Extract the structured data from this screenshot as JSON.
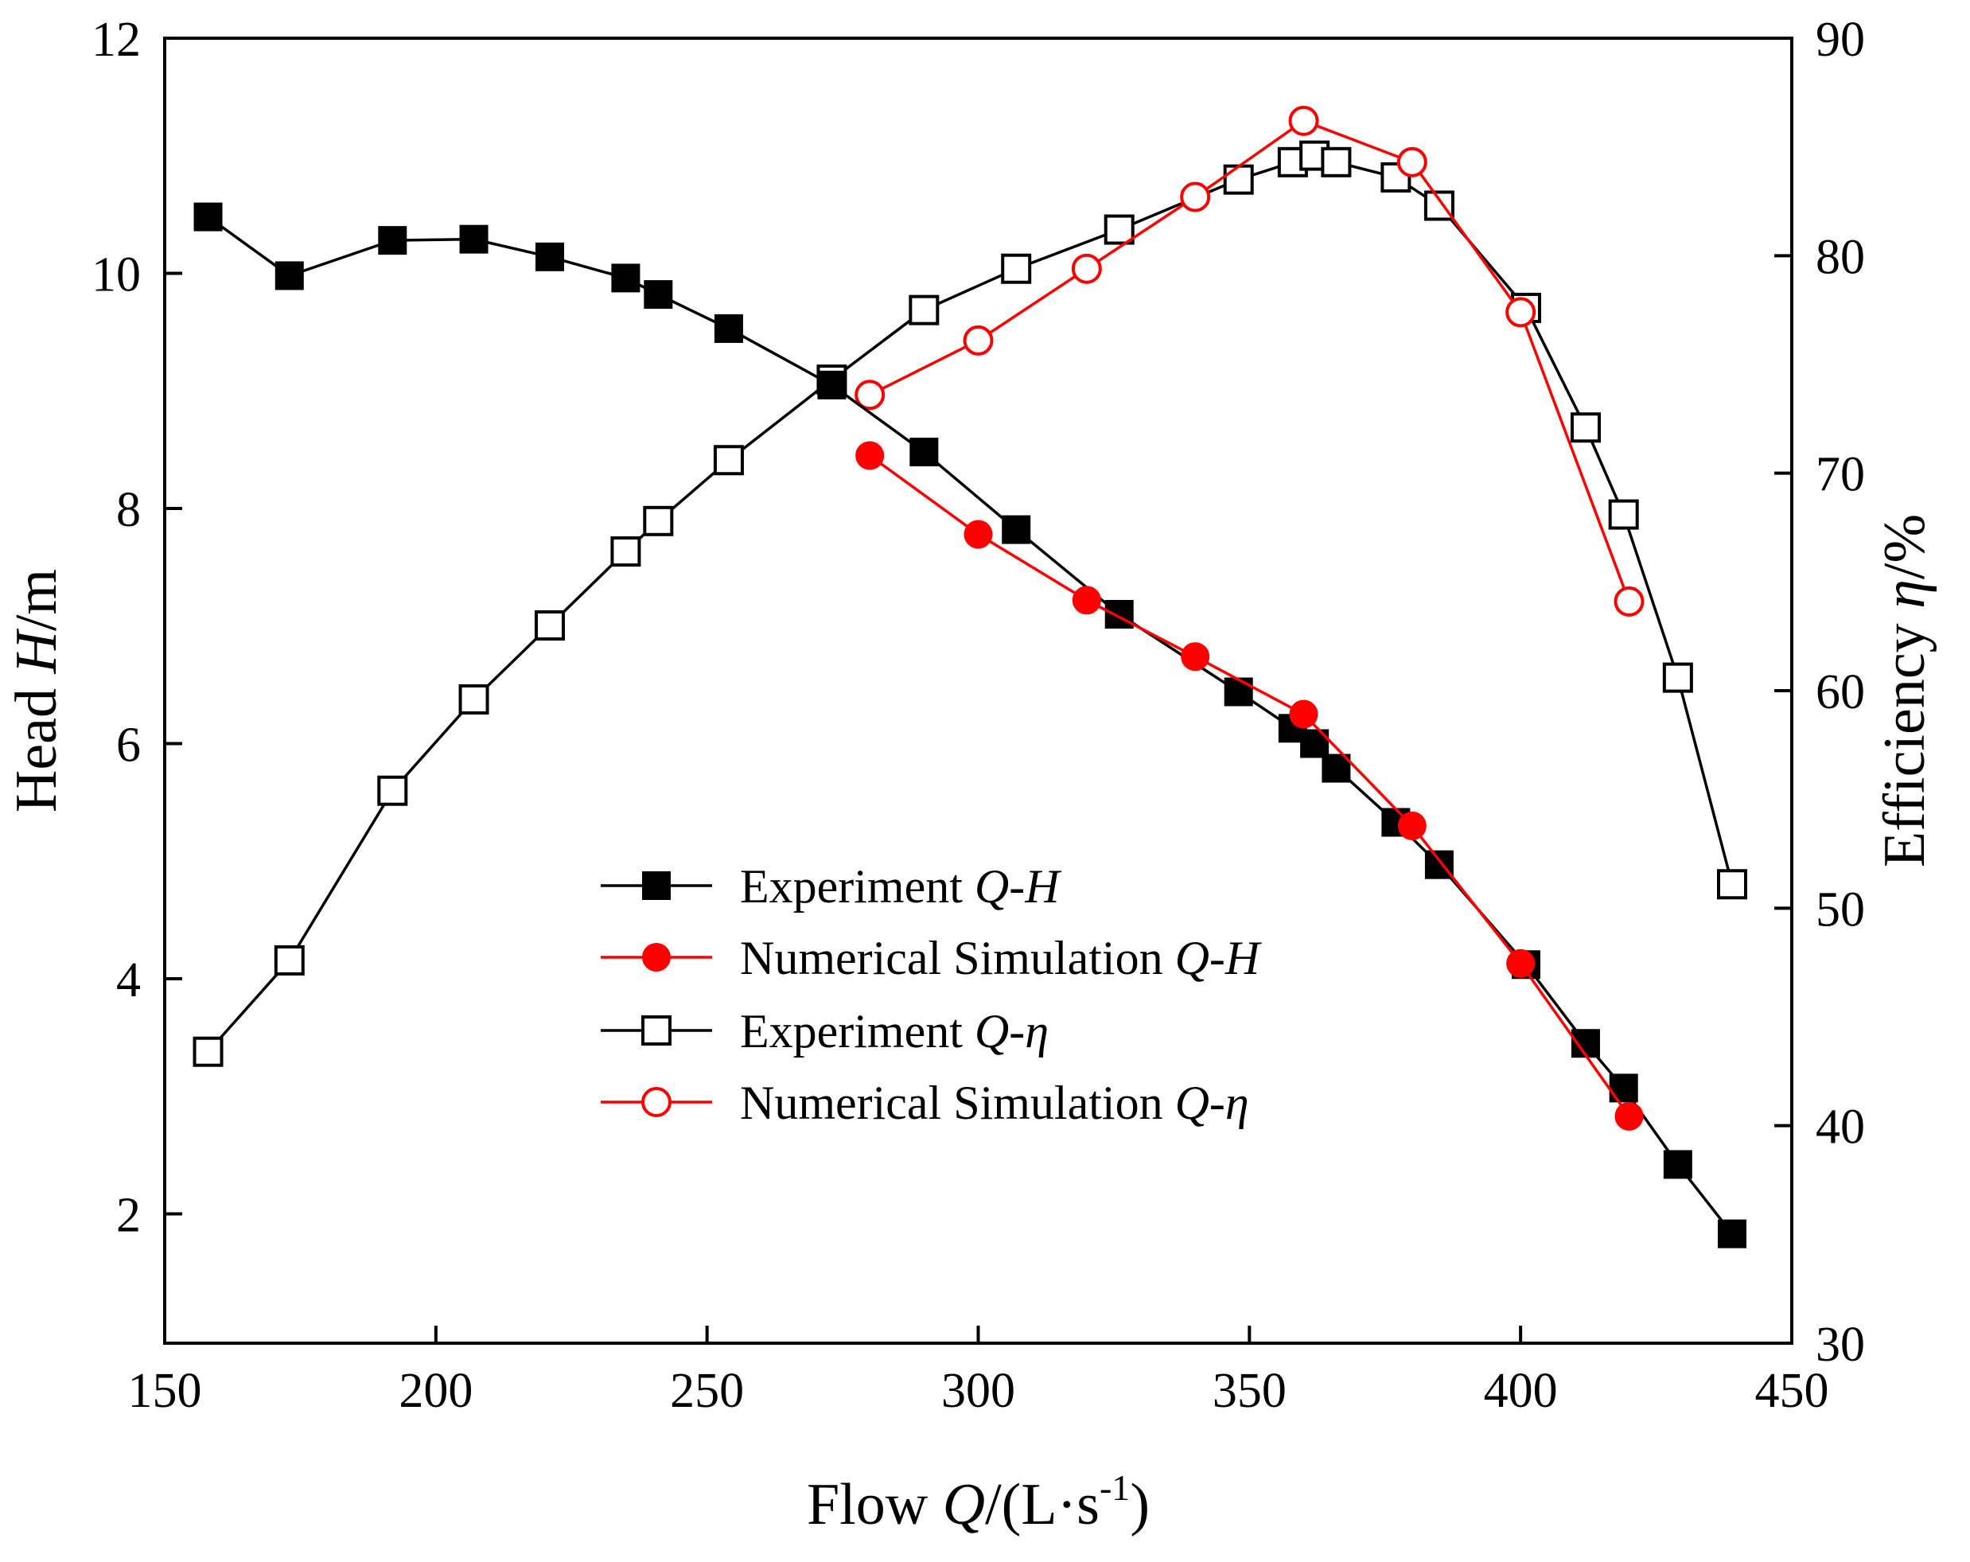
{
  "chart_data": {
    "type": "line",
    "title": "",
    "xlabel": {
      "prefix": "Flow ",
      "var": "Q",
      "unit_open": "/(L·s",
      "sup": "-1",
      "unit_close": ")"
    },
    "ylabel_left": {
      "prefix": "Head  ",
      "var": "H",
      "unit": "/m"
    },
    "ylabel_right": {
      "prefix": "Efficiency ",
      "var": "η",
      "unit": "/%"
    },
    "xlim": [
      150,
      450
    ],
    "ylim_left": [
      0.9,
      12
    ],
    "ylim_right": [
      30,
      90
    ],
    "x_ticks": [
      150,
      200,
      250,
      300,
      350,
      400,
      450
    ],
    "y_left_ticks": [
      2,
      4,
      6,
      8,
      10,
      12
    ],
    "y_right_ticks": [
      30,
      40,
      50,
      60,
      70,
      80,
      90
    ],
    "grid": false,
    "legend_position": "center",
    "series": [
      {
        "name": "Experiment Q-H",
        "legend_prefix": "Experiment ",
        "legend_var": "Q-H",
        "axis": "left",
        "color": "#000000",
        "marker": "square-filled",
        "x": [
          158,
          173,
          192,
          207,
          221,
          235,
          241,
          254,
          273,
          290,
          307,
          326,
          348,
          358,
          362,
          366,
          377,
          385,
          401,
          412,
          419,
          429,
          439
        ],
        "y": [
          10.48,
          9.98,
          10.28,
          10.29,
          10.14,
          9.96,
          9.82,
          9.53,
          9.05,
          8.48,
          7.82,
          7.1,
          6.44,
          6.13,
          6.0,
          5.79,
          5.33,
          4.97,
          4.12,
          3.45,
          3.07,
          2.42,
          1.83
        ]
      },
      {
        "name": "Numerical Simulation Q-H",
        "legend_prefix": "Numerical Simulation ",
        "legend_var": "Q-H",
        "axis": "left",
        "color": "#ff0000",
        "marker": "circle-filled",
        "x": [
          280,
          300,
          320,
          340,
          360,
          380,
          400,
          420
        ],
        "y": [
          8.45,
          7.78,
          7.22,
          6.74,
          6.25,
          5.3,
          4.13,
          2.83
        ]
      },
      {
        "name": "Experiment Q-η",
        "legend_prefix": "Experiment ",
        "legend_var": "Q-η",
        "axis": "right",
        "color": "#000000",
        "marker": "square-open",
        "x": [
          158,
          173,
          192,
          207,
          221,
          235,
          241,
          254,
          273,
          290,
          307,
          326,
          348,
          358,
          362,
          366,
          377,
          385,
          401,
          412,
          419,
          429,
          439
        ],
        "y": [
          43.4,
          47.6,
          55.4,
          59.6,
          63.0,
          66.4,
          67.8,
          70.6,
          74.3,
          77.5,
          79.4,
          81.2,
          83.5,
          84.3,
          84.6,
          84.3,
          83.6,
          82.3,
          77.6,
          72.1,
          68.1,
          60.6,
          51.1
        ]
      },
      {
        "name": "Numerical Simulation Q-η",
        "legend_prefix": "Numerical Simulation ",
        "legend_var": "Q-η",
        "axis": "right",
        "color": "#ff0000",
        "marker": "circle-open",
        "x": [
          280,
          300,
          320,
          340,
          360,
          380,
          400,
          420
        ],
        "y": [
          73.6,
          76.1,
          79.4,
          82.7,
          86.2,
          84.3,
          77.4,
          64.1
        ]
      }
    ]
  }
}
